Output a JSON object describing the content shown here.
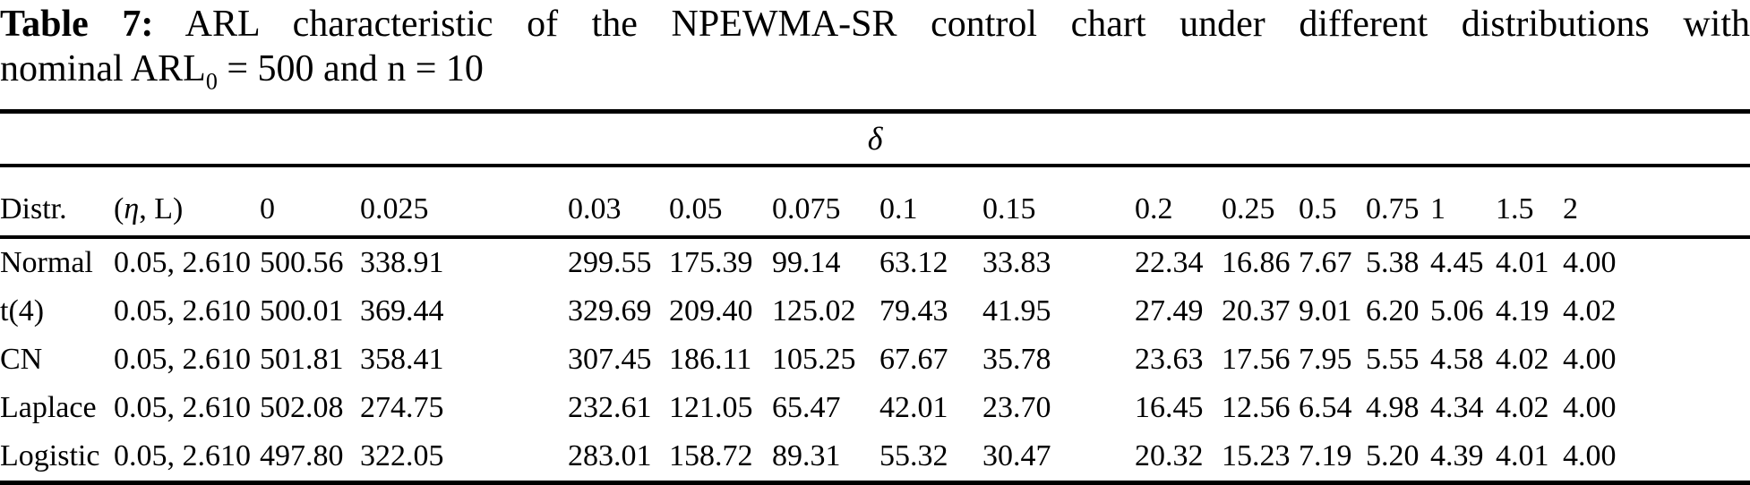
{
  "caption": {
    "label": "Table 7:",
    "line1": "ARL characteristic of the NPEWMA-SR control chart under different distributions with",
    "line2_pre": "nominal ARL",
    "line2_sub": "0",
    "line2_post": " = 500 and n = 10"
  },
  "table": {
    "span_header": "δ",
    "col_distr": "Distr.",
    "eta_header": {
      "open": "(",
      "eta": "η",
      "rest": ", L)"
    },
    "delta_columns": [
      "0",
      "0.025",
      "0.03",
      "0.05",
      "0.075",
      "0.1",
      "0.15",
      "0.2",
      "0.25",
      "0.5",
      "0.75",
      "1",
      "1.5",
      "2"
    ],
    "rows": [
      {
        "dist": "Normal",
        "eta_L": "0.05, 2.610",
        "values": [
          "500.56",
          "338.91",
          "299.55",
          "175.39",
          "99.14",
          "63.12",
          "33.83",
          "22.34",
          "16.86",
          "7.67",
          "5.38",
          "4.45",
          "4.01",
          "4.00"
        ]
      },
      {
        "dist": "t(4)",
        "eta_L": "0.05, 2.610",
        "values": [
          "500.01",
          "369.44",
          "329.69",
          "209.40",
          "125.02",
          "79.43",
          "41.95",
          "27.49",
          "20.37",
          "9.01",
          "6.20",
          "5.06",
          "4.19",
          "4.02"
        ]
      },
      {
        "dist": "CN",
        "eta_L": "0.05, 2.610",
        "values": [
          "501.81",
          "358.41",
          "307.45",
          "186.11",
          "105.25",
          "67.67",
          "35.78",
          "23.63",
          "17.56",
          "7.95",
          "5.55",
          "4.58",
          "4.02",
          "4.00"
        ]
      },
      {
        "dist": "Laplace",
        "eta_L": "0.05, 2.610",
        "values": [
          "502.08",
          "274.75",
          "232.61",
          "121.05",
          "65.47",
          "42.01",
          "23.70",
          "16.45",
          "12.56",
          "6.54",
          "4.98",
          "4.34",
          "4.02",
          "4.00"
        ]
      },
      {
        "dist": "Logistic",
        "eta_L": "0.05, 2.610",
        "values": [
          "497.80",
          "322.05",
          "283.01",
          "158.72",
          "89.31",
          "55.32",
          "30.47",
          "20.32",
          "15.23",
          "7.19",
          "5.20",
          "4.39",
          "4.01",
          "4.00"
        ]
      }
    ]
  }
}
